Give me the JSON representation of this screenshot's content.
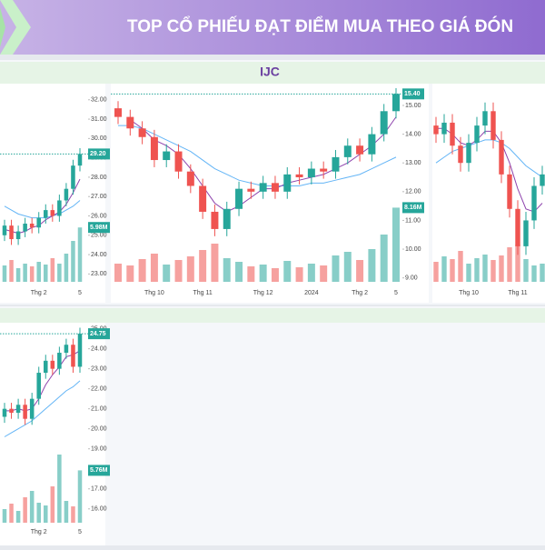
{
  "header": {
    "title": "TOP CỔ PHIẾU ĐẠT ĐIỂM MUA THEO GIÁ ĐÓN"
  },
  "chart_data": [
    {
      "type": "candlestick",
      "categories": [
        null,
        null,
        null,
        null,
        null,
        "Thg 2",
        null,
        null,
        null,
        null,
        null,
        "5"
      ],
      "open": [
        25.0,
        25.5,
        24.8,
        25.2,
        25.6,
        25.4,
        25.9,
        26.3,
        26.0,
        26.8,
        27.4,
        28.6
      ],
      "high": [
        25.8,
        25.8,
        25.5,
        25.9,
        25.9,
        26.2,
        26.6,
        26.6,
        27.1,
        27.7,
        28.9,
        29.5
      ],
      "low": [
        24.7,
        24.5,
        24.5,
        24.9,
        25.1,
        25.1,
        25.6,
        25.7,
        25.7,
        26.5,
        27.1,
        28.3
      ],
      "close": [
        25.5,
        24.8,
        25.2,
        25.6,
        25.4,
        25.9,
        26.3,
        26.0,
        26.8,
        27.4,
        28.6,
        29.2
      ],
      "close_label": "29.20",
      "volume": [
        1.8,
        2.4,
        1.5,
        2.0,
        1.7,
        2.2,
        1.9,
        2.6,
        2.0,
        3.1,
        4.5,
        5.98
      ],
      "volume_label": "5.98M",
      "ma_fast": {
        "color": "#8e44ad",
        "values": [
          25.3,
          25.2,
          25.1,
          25.2,
          25.4,
          25.5,
          25.8,
          26.0,
          26.2,
          26.6,
          27.2,
          27.9
        ]
      },
      "ma_slow": {
        "color": "#64b5f6",
        "values": [
          26.5,
          26.3,
          26.1,
          26.0,
          25.9,
          25.9,
          25.9,
          26.0,
          26.1,
          26.3,
          26.5,
          26.8
        ]
      },
      "ylim": [
        22.5,
        32.6
      ],
      "yticks": [
        {
          "value": 23,
          "label": "23.00"
        },
        {
          "value": 24,
          "label": "24.00"
        },
        {
          "value": 25,
          "label": "25.00"
        },
        {
          "value": 26,
          "label": "26.00"
        },
        {
          "value": 27,
          "label": "27.00"
        },
        {
          "value": 28,
          "label": "28.00"
        },
        {
          "value": 29,
          "label": "29.00"
        },
        {
          "value": 30,
          "label": "30.00"
        },
        {
          "value": 31,
          "label": "31.00"
        },
        {
          "value": 32,
          "label": "32.00"
        }
      ]
    },
    {
      "type": "candlestick",
      "title": "IJC",
      "categories": [
        null,
        null,
        null,
        "Thg 10",
        null,
        null,
        null,
        "Thg 11",
        null,
        null,
        null,
        null,
        "Thg 12",
        null,
        null,
        null,
        "2024",
        null,
        null,
        null,
        "Thg 2",
        null,
        null,
        "5"
      ],
      "open": [
        14.9,
        14.6,
        14.2,
        13.9,
        13.1,
        13.4,
        12.7,
        12.2,
        11.3,
        10.7,
        11.4,
        12.1,
        12.0,
        12.3,
        12.0,
        12.6,
        12.5,
        12.8,
        12.7,
        13.2,
        13.6,
        13.3,
        14.0,
        14.8
      ],
      "high": [
        15.15,
        14.85,
        14.45,
        14.15,
        13.65,
        13.65,
        12.95,
        12.45,
        11.55,
        11.65,
        12.35,
        12.35,
        12.55,
        12.55,
        12.85,
        12.85,
        13.05,
        13.05,
        13.45,
        13.85,
        13.85,
        14.25,
        15.05,
        15.6
      ],
      "low": [
        14.35,
        13.95,
        13.65,
        12.85,
        12.85,
        12.45,
        11.95,
        11.05,
        10.45,
        10.45,
        11.15,
        11.75,
        11.75,
        11.75,
        11.75,
        12.25,
        12.25,
        12.45,
        12.45,
        12.95,
        13.05,
        13.05,
        13.75,
        14.55
      ],
      "close": [
        14.6,
        14.2,
        13.9,
        13.1,
        13.4,
        12.7,
        12.2,
        11.3,
        10.7,
        11.4,
        12.1,
        12.0,
        12.3,
        12.0,
        12.6,
        12.5,
        12.8,
        12.7,
        13.2,
        13.6,
        13.3,
        14.0,
        14.8,
        15.4
      ],
      "close_label": "15.40",
      "volume": [
        2.0,
        1.8,
        2.5,
        3.1,
        1.9,
        2.4,
        2.8,
        3.5,
        4.2,
        2.6,
        2.2,
        1.7,
        1.9,
        1.5,
        2.3,
        1.6,
        2.0,
        1.8,
        2.9,
        3.3,
        2.4,
        3.6,
        5.2,
        8.16
      ],
      "volume_label": "8.16M",
      "ma_fast": {
        "color": "#8e44ad",
        "values": [
          null,
          14.5,
          14.2,
          13.8,
          13.6,
          13.3,
          12.8,
          12.2,
          11.6,
          11.3,
          11.5,
          11.8,
          12.1,
          12.1,
          12.3,
          12.4,
          12.5,
          12.6,
          12.8,
          13.0,
          13.3,
          13.6,
          14.0,
          14.6
        ]
      },
      "ma_slow": {
        "color": "#64b5f6",
        "values": [
          14.3,
          14.3,
          14.2,
          14.0,
          13.8,
          13.6,
          13.4,
          13.1,
          12.8,
          12.6,
          12.4,
          12.3,
          12.2,
          12.2,
          12.2,
          12.2,
          12.3,
          12.3,
          12.4,
          12.5,
          12.6,
          12.8,
          13.0,
          13.2
        ]
      },
      "ylim": [
        8.8,
        15.6
      ],
      "yticks": [
        {
          "value": 9,
          "label": "9.00"
        },
        {
          "value": 10,
          "label": "10.00"
        },
        {
          "value": 11,
          "label": "11.00"
        },
        {
          "value": 12,
          "label": "12.00"
        },
        {
          "value": 13,
          "label": "13.00"
        },
        {
          "value": 14,
          "label": "14.00"
        },
        {
          "value": 15,
          "label": "15.00"
        }
      ]
    },
    {
      "type": "candlestick",
      "categories": [
        null,
        null,
        null,
        null,
        "Thg 10",
        null,
        null,
        null,
        null,
        null,
        "Thg 11",
        null,
        null,
        null
      ],
      "open": [
        14.5,
        14.2,
        14.6,
        13.8,
        13.2,
        13.9,
        14.5,
        15.0,
        14.0,
        12.8,
        11.6,
        10.3,
        11.2,
        12.4
      ],
      "high": [
        14.8,
        14.9,
        14.9,
        14.1,
        14.2,
        14.8,
        15.3,
        15.3,
        14.3,
        13.1,
        11.9,
        11.5,
        12.7,
        13.1
      ],
      "low": [
        13.9,
        13.9,
        13.5,
        12.9,
        12.9,
        13.6,
        14.2,
        13.7,
        12.5,
        11.3,
        10.0,
        10.0,
        10.9,
        12.1
      ],
      "close": [
        14.2,
        14.6,
        13.8,
        13.2,
        13.9,
        14.5,
        15.0,
        14.0,
        12.8,
        11.6,
        10.3,
        11.2,
        12.4,
        12.8
      ],
      "volume": [
        2.2,
        2.8,
        2.5,
        3.4,
        2.0,
        2.6,
        3.0,
        2.4,
        2.9,
        3.8,
        4.1,
        2.5,
        1.8,
        2.0
      ],
      "ma_fast": {
        "color": "#8e44ad",
        "values": [
          14.4,
          14.4,
          14.2,
          13.9,
          13.8,
          14.0,
          14.3,
          14.3,
          13.9,
          13.2,
          12.3,
          11.6,
          11.5,
          11.8
        ]
      },
      "ma_slow": {
        "color": "#64b5f6",
        "values": [
          13.2,
          13.4,
          13.6,
          13.7,
          13.8,
          13.9,
          14.0,
          14.0,
          13.9,
          13.7,
          13.4,
          13.1,
          12.9,
          12.7
        ]
      },
      "ylim": [
        9.0,
        15.8
      ]
    },
    {
      "type": "candlestick",
      "categories": [
        null,
        null,
        null,
        null,
        null,
        "Thg 2",
        null,
        null,
        null,
        null,
        null,
        "5"
      ],
      "open": [
        20.6,
        21.0,
        20.8,
        21.2,
        20.5,
        21.5,
        22.8,
        23.4,
        23.0,
        23.8,
        24.2,
        23.1
      ],
      "high": [
        21.3,
        21.3,
        21.5,
        21.5,
        21.8,
        23.1,
        23.7,
        23.7,
        24.1,
        24.5,
        24.5,
        25.05
      ],
      "low": [
        20.3,
        20.5,
        20.5,
        20.2,
        20.2,
        21.2,
        22.5,
        22.7,
        22.7,
        23.5,
        22.8,
        22.8
      ],
      "close": [
        21.0,
        20.8,
        21.2,
        20.5,
        21.5,
        22.8,
        23.4,
        23.0,
        23.8,
        24.2,
        23.1,
        24.75
      ],
      "close_label": "24.75",
      "volume": [
        1.5,
        2.1,
        1.3,
        2.8,
        3.5,
        2.2,
        1.9,
        4.0,
        7.5,
        2.4,
        1.8,
        5.76
      ],
      "volume_label": "5.76M",
      "ma_fast": {
        "color": "#8e44ad",
        "values": [
          20.9,
          20.9,
          21.0,
          20.9,
          21.0,
          21.5,
          22.2,
          22.7,
          23.1,
          23.6,
          23.7,
          23.9
        ]
      },
      "ma_slow": {
        "color": "#64b5f6",
        "values": [
          19.6,
          19.8,
          20.0,
          20.2,
          20.4,
          20.7,
          21.0,
          21.3,
          21.6,
          21.9,
          22.1,
          22.4
        ]
      },
      "ylim": [
        14.4,
        25.3
      ],
      "yticks": [
        {
          "value": 16,
          "label": "16.00"
        },
        {
          "value": 17,
          "label": "17.00"
        },
        {
          "value": 18,
          "label": "18.00"
        },
        {
          "value": 19,
          "label": "19.00"
        },
        {
          "value": 20,
          "label": "20.00"
        },
        {
          "value": 21,
          "label": "21.00"
        },
        {
          "value": 22,
          "label": "22.00"
        },
        {
          "value": 23,
          "label": "23.00"
        },
        {
          "value": 24,
          "label": "24.00"
        },
        {
          "value": 25,
          "label": "25.00"
        }
      ]
    }
  ]
}
